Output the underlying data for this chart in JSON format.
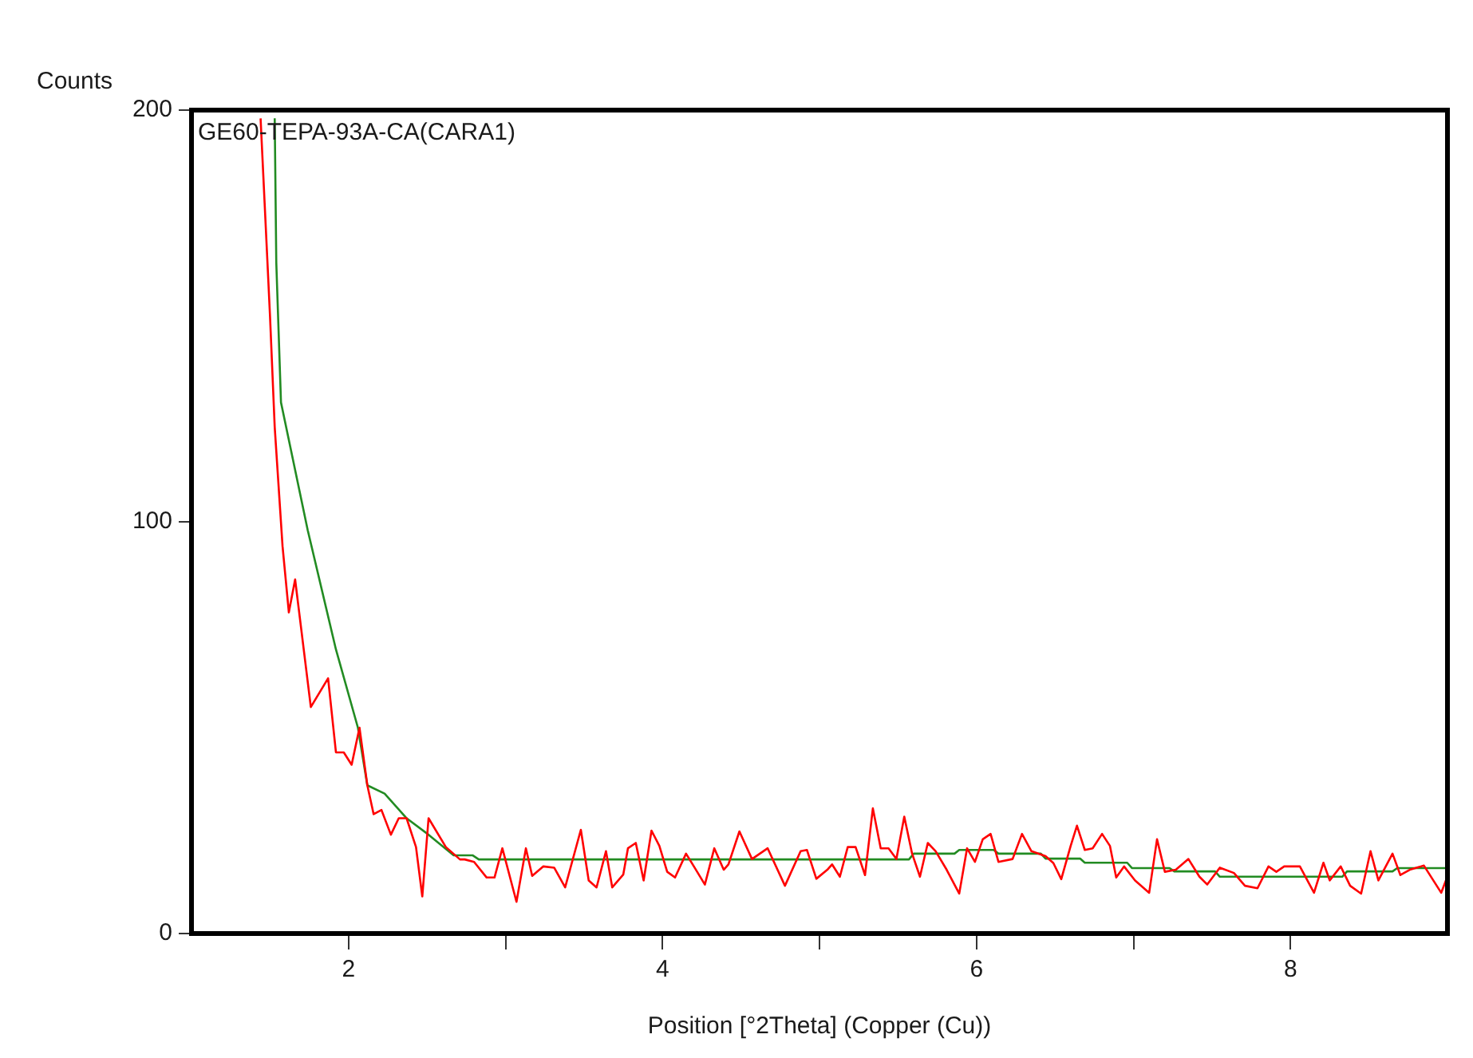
{
  "chart_data": {
    "type": "line",
    "title": "GE60-TEPA-93A-CA(CARA1)",
    "xlabel": "Position [°2Theta] (Copper (Cu))",
    "ylabel": "Counts",
    "xlim": [
      1,
      9
    ],
    "ylim": [
      0,
      200
    ],
    "xticks": [
      2,
      {
        "value": 3,
        "label": null
      },
      4,
      {
        "value": 5,
        "label": null
      },
      6,
      {
        "value": 7,
        "label": null
      },
      8
    ],
    "yticks": [
      0,
      100,
      200
    ],
    "grid": false,
    "legend": false,
    "marker": "none",
    "line_style": "solid",
    "series": [
      {
        "color": "#ff0000",
        "x": [
          1.44,
          1.5,
          1.53,
          1.58,
          1.62,
          1.66,
          1.76,
          1.87,
          1.92,
          1.97,
          2.02,
          2.07,
          2.12,
          2.16,
          2.21,
          2.27,
          2.32,
          2.37,
          2.43,
          2.47,
          2.51,
          2.62,
          2.71,
          2.74,
          2.8,
          2.88,
          2.93,
          2.98,
          3.07,
          3.13,
          3.17,
          3.24,
          3.31,
          3.38,
          3.48,
          3.53,
          3.58,
          3.64,
          3.68,
          3.75,
          3.78,
          3.83,
          3.88,
          3.93,
          3.98,
          4.03,
          4.08,
          4.15,
          4.2,
          4.27,
          4.33,
          4.39,
          4.42,
          4.49,
          4.57,
          4.67,
          4.78,
          4.88,
          4.92,
          4.98,
          5.05,
          5.08,
          5.13,
          5.18,
          5.23,
          5.29,
          5.34,
          5.39,
          5.44,
          5.49,
          5.54,
          5.59,
          5.64,
          5.69,
          5.74,
          5.81,
          5.89,
          5.94,
          5.99,
          6.04,
          6.09,
          6.14,
          6.23,
          6.29,
          6.35,
          6.44,
          6.49,
          6.54,
          6.6,
          6.64,
          6.69,
          6.74,
          6.8,
          6.85,
          6.89,
          6.94,
          7.01,
          7.1,
          7.15,
          7.2,
          7.27,
          7.35,
          7.42,
          7.47,
          7.55,
          7.64,
          7.71,
          7.79,
          7.86,
          7.91,
          7.96,
          8.06,
          8.15,
          8.21,
          8.25,
          8.32,
          8.38,
          8.45,
          8.51,
          8.56,
          8.65,
          8.7,
          8.76,
          8.85,
          8.96,
          8.99
        ],
        "values": [
          198,
          150,
          123,
          94,
          78,
          86,
          55,
          62,
          44,
          44,
          41,
          50,
          36,
          29,
          30,
          24,
          28,
          28,
          21,
          9,
          28,
          21,
          18,
          18,
          17.4,
          13.6,
          13.6,
          20.7,
          7.7,
          20.7,
          14,
          16.3,
          16,
          11.2,
          25.2,
          12.9,
          11.2,
          20,
          11.2,
          14.3,
          20.7,
          22,
          12.9,
          25,
          21.3,
          15,
          13.6,
          19.4,
          16.3,
          11.9,
          20.7,
          15.5,
          16.8,
          24.8,
          18.1,
          20.7,
          11.6,
          20,
          20.3,
          13.3,
          15.5,
          16.8,
          13.8,
          21,
          21,
          14.2,
          30.4,
          20.7,
          20.7,
          18.1,
          28.4,
          19.4,
          13.8,
          22,
          20,
          15.5,
          9.7,
          20.7,
          17.4,
          22.9,
          24.2,
          17.4,
          18.1,
          24.2,
          20,
          18.8,
          17.1,
          13.2,
          21.3,
          26.2,
          20.3,
          20.7,
          24.2,
          21.3,
          13.6,
          16.3,
          12.9,
          9.9,
          22.9,
          15,
          15.5,
          18.1,
          13.8,
          11.9,
          16,
          14.7,
          11.6,
          11,
          16.3,
          15,
          16.3,
          16.3,
          9.9,
          17.2,
          12.9,
          16.3,
          11.6,
          9.7,
          20,
          12.9,
          19.4,
          14.2,
          15.5,
          16.5,
          9.9,
          12.9
        ]
      },
      {
        "color": "#228b22",
        "x": [
          1.53,
          1.54,
          1.57,
          1.74,
          1.92,
          2.06,
          2.12,
          2.23,
          2.37,
          2.51,
          2.67,
          2.79,
          2.83,
          5.57,
          5.6,
          5.86,
          5.89,
          6.11,
          6.14,
          6.41,
          6.44,
          6.66,
          6.69,
          6.96,
          6.99,
          7.23,
          7.26,
          7.52,
          7.55,
          8.33,
          8.36,
          8.65,
          8.68,
          8.99
        ],
        "values": [
          198,
          163,
          129,
          98,
          69,
          50,
          36,
          34,
          28,
          24,
          19,
          19,
          18,
          18,
          19.4,
          19.4,
          20.3,
          20.3,
          19.4,
          19.4,
          18.2,
          18.2,
          17.2,
          17.2,
          15.9,
          15.9,
          15.1,
          15.1,
          13.8,
          13.8,
          15.1,
          15.1,
          15.9,
          15.9
        ]
      }
    ]
  }
}
